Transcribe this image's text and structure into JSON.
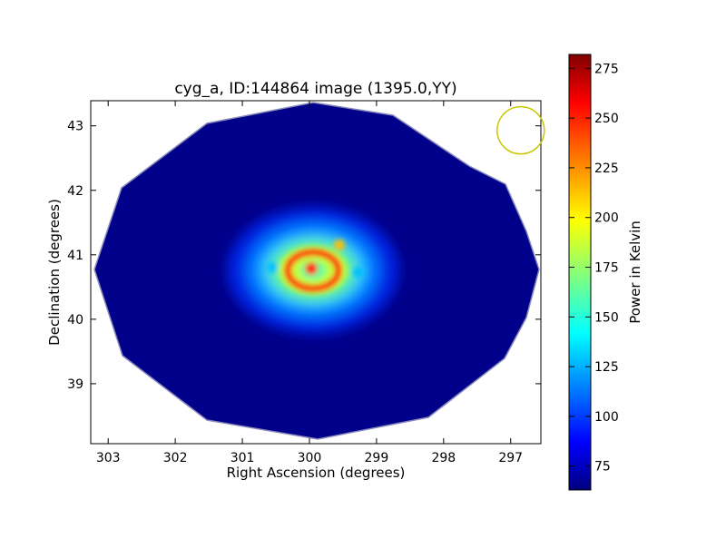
{
  "chart_data": {
    "type": "heatmap",
    "title": "cyg_a, ID:144864 image (1395.0,YY)",
    "xlabel": "Right Ascension (degrees)",
    "ylabel": "Declination (degrees)",
    "xlim": [
      303.26,
      296.55
    ],
    "ylim": [
      38.07,
      43.39
    ],
    "xticks": [
      303,
      302,
      301,
      300,
      299,
      298,
      297
    ],
    "yticks": [
      39,
      40,
      41,
      42,
      43
    ],
    "colormap": "jet",
    "colorbar": {
      "label": "Power in Kelvin",
      "range": [
        63,
        282
      ],
      "ticks": [
        75,
        100,
        125,
        150,
        175,
        200,
        225,
        250,
        275
      ]
    },
    "source_center": {
      "ra": 299.9,
      "dec": 40.75,
      "peak": 275
    },
    "background_level": 70,
    "beam_marker": {
      "ra": 296.85,
      "dec": 42.93,
      "color": "#c8c800"
    },
    "grid": false
  }
}
